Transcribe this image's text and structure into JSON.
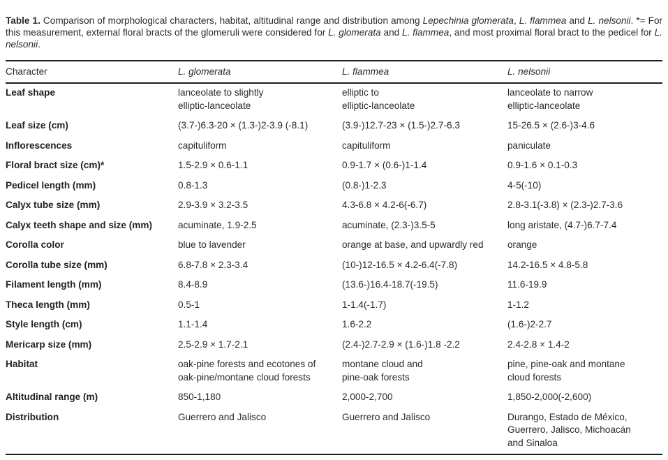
{
  "caption": {
    "segments": [
      {
        "text": "Table 1.",
        "style": "bold"
      },
      {
        "text": " Comparison of morphological characters, habitat, altitudinal range and distribution among ",
        "style": "normal"
      },
      {
        "text": "Lepechinia glomerata",
        "style": "italic"
      },
      {
        "text": ", ",
        "style": "normal"
      },
      {
        "text": "L. flammea",
        "style": "italic"
      },
      {
        "text": " and ",
        "style": "normal"
      },
      {
        "text": "L. nelsonii",
        "style": "italic"
      },
      {
        "text": ". *= For this measurement, external floral bracts of the glomeruli were considered for ",
        "style": "normal"
      },
      {
        "text": "L. glomerata",
        "style": "italic"
      },
      {
        "text": " and ",
        "style": "normal"
      },
      {
        "text": "L. flammea",
        "style": "italic"
      },
      {
        "text": ", and most proximal floral bract to the pedicel for ",
        "style": "normal"
      },
      {
        "text": "L. nelsonii",
        "style": "italic"
      },
      {
        "text": ".",
        "style": "normal"
      }
    ]
  },
  "table": {
    "columns": [
      "Character",
      "L. glomerata",
      "L. flammea",
      "L. nelsonii"
    ],
    "rows": [
      {
        "character": "Leaf shape",
        "glomerata": "lanceolate to slightly\nelliptic-lanceolate",
        "flammea": "elliptic to\nelliptic-lanceolate",
        "nelsonii": "lanceolate to narrow\nelliptic-lanceolate"
      },
      {
        "character": "Leaf size (cm)",
        "glomerata": "(3.7-)6.3-20 × (1.3-)2-3.9 (-8.1)",
        "flammea": "(3.9-)12.7-23 × (1.5-)2.7-6.3",
        "nelsonii": "15-26.5 × (2.6-)3-4.6"
      },
      {
        "character": "Inflorescences",
        "glomerata": "capituliform",
        "flammea": "capituliform",
        "nelsonii": "paniculate"
      },
      {
        "character": "Floral bract size (cm)*",
        "glomerata": "1.5-2.9 × 0.6-1.1",
        "flammea": "0.9-1.7 × (0.6-)1-1.4",
        "nelsonii": "0.9-1.6 × 0.1-0.3"
      },
      {
        "character": "Pedicel length (mm)",
        "glomerata": "0.8-1.3",
        "flammea": "(0.8-)1-2.3",
        "nelsonii": "4-5(-10)"
      },
      {
        "character": "Calyx tube size (mm)",
        "glomerata": "2.9-3.9 × 3.2-3.5",
        "flammea": "4.3-6.8 × 4.2-6(-6.7)",
        "nelsonii": "2.8-3.1(-3.8) × (2.3-)2.7-3.6"
      },
      {
        "character": "Calyx teeth shape and size (mm)",
        "glomerata": "acuminate, 1.9-2.5",
        "flammea": "acuminate, (2.3-)3.5-5",
        "nelsonii": "long aristate, (4.7-)6.7-7.4"
      },
      {
        "character": "Corolla color",
        "glomerata": "blue to lavender",
        "flammea": "orange at base, and upwardly red",
        "nelsonii": "orange"
      },
      {
        "character": "Corolla tube size (mm)",
        "glomerata": "6.8-7.8 × 2.3-3.4",
        "flammea": "(10-)12-16.5 × 4.2-6.4(-7.8)",
        "nelsonii": "14.2-16.5 × 4.8-5.8"
      },
      {
        "character": "Filament length (mm)",
        "glomerata": "8.4-8.9",
        "flammea": "(13.6-)16.4-18.7(-19.5)",
        "nelsonii": "11.6-19.9"
      },
      {
        "character": "Theca length (mm)",
        "glomerata": "0.5-1",
        "flammea": "1-1.4(-1.7)",
        "nelsonii": "1-1.2"
      },
      {
        "character": "Style length (cm)",
        "glomerata": "1.1-1.4",
        "flammea": "1.6-2.2",
        "nelsonii": "(1.6-)2-2.7"
      },
      {
        "character": "Mericarp size (mm)",
        "glomerata": "2.5-2.9 × 1.7-2.1",
        "flammea": "(2.4-)2.7-2.9 × (1.6-)1.8 -2.2",
        "nelsonii": "2.4-2.8 × 1.4-2"
      },
      {
        "character": "Habitat",
        "glomerata": "oak-pine forests and ecotones of\noak-pine/montane cloud forests",
        "flammea": "montane cloud and\npine-oak forests",
        "nelsonii": "pine, pine-oak and montane\ncloud forests"
      },
      {
        "character": "Altitudinal range (m)",
        "glomerata": "850-1,180",
        "flammea": "2,000-2,700",
        "nelsonii": "1,850-2,000(-2,600)"
      },
      {
        "character": "Distribution",
        "glomerata": "Guerrero and Jalisco",
        "flammea": "Guerrero and Jalisco",
        "nelsonii": "Durango, Estado de México,\nGuerrero, Jalisco, Michoacán\nand Sinaloa"
      }
    ]
  }
}
